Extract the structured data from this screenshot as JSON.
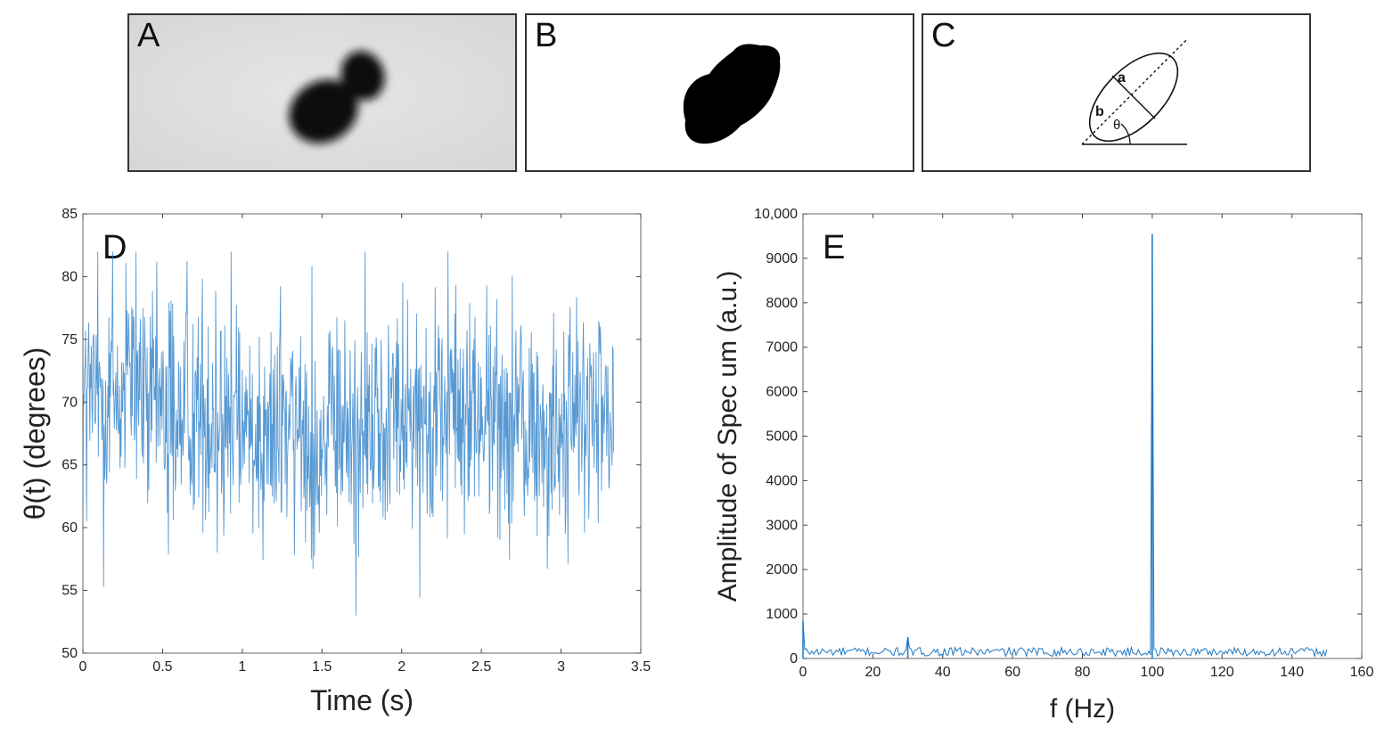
{
  "panels": {
    "A": {
      "label": "A"
    },
    "B": {
      "label": "B"
    },
    "C": {
      "label": "C",
      "ellipse_labels": {
        "a": "a",
        "b": "b",
        "theta": "θ"
      }
    }
  },
  "chart_data": [
    {
      "id": "D",
      "type": "line",
      "panel_label": "D",
      "title": "",
      "xlabel": "Time (s)",
      "ylabel": "θ(t) (degrees)",
      "xlim": [
        0,
        3.5
      ],
      "ylim": [
        50,
        85
      ],
      "xticks": [
        0,
        0.5,
        1,
        1.5,
        2,
        2.5,
        3,
        3.5
      ],
      "xtick_labels": [
        "0",
        "0.5",
        "1",
        "1.5",
        "2",
        "2.5",
        "3",
        "3.5"
      ],
      "yticks": [
        50,
        55,
        60,
        65,
        70,
        75,
        80,
        85
      ],
      "ytick_labels": [
        "50",
        "55",
        "60",
        "65",
        "70",
        "75",
        "80",
        "85"
      ],
      "color": "#1f77c4",
      "series": [
        {
          "description_x_range": [
            0,
            3.33
          ],
          "sample_count": 1000,
          "mean_level": [
            [
              0,
              70.5
            ],
            [
              0.5,
              70
            ],
            [
              1,
              68.5
            ],
            [
              1.5,
              67
            ],
            [
              2,
              69.5
            ],
            [
              2.5,
              69
            ],
            [
              3,
              67.5
            ],
            [
              3.33,
              69
            ]
          ],
          "typical_range": [
            60,
            78
          ],
          "extremes": {
            "min": 53,
            "max": 82
          }
        }
      ]
    },
    {
      "id": "E",
      "type": "line",
      "panel_label": "E",
      "title": "",
      "xlabel": "f (Hz)",
      "ylabel": "Amplitude of Spec   um (a.u.)",
      "xlim": [
        0,
        160
      ],
      "ylim": [
        0,
        10000
      ],
      "xticks": [
        0,
        20,
        40,
        60,
        80,
        100,
        120,
        140,
        160
      ],
      "xtick_labels": [
        "0",
        "20",
        "40",
        "60",
        "80",
        "100",
        "120",
        "140",
        "160"
      ],
      "yticks": [
        0,
        1000,
        2000,
        3000,
        4000,
        5000,
        6000,
        7000,
        8000,
        9000,
        10000
      ],
      "ytick_labels": [
        "0",
        "1000",
        "2000",
        "3000",
        "4000",
        "5000",
        "6000",
        "7000",
        "8000",
        "9000",
        "10,000"
      ],
      "color": "#1f77c4",
      "series": [
        {
          "x_range": [
            0,
            150
          ],
          "baseline_level": [
            50,
            250
          ],
          "peaks": [
            {
              "x": 0,
              "y": 850
            },
            {
              "x": 30,
              "y": 480
            },
            {
              "x": 100,
              "y": 9550
            }
          ]
        }
      ]
    }
  ]
}
